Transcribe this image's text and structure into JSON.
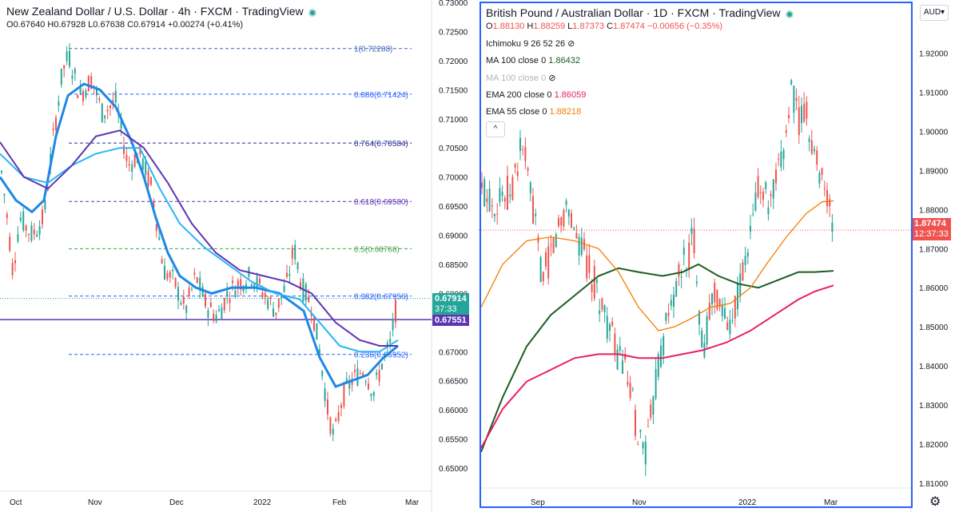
{
  "left_chart": {
    "title": "New Zealand Dollar / U.S. Dollar · 4h · FXCM · TradingView",
    "ohlc": {
      "o_label": "O",
      "o": "0.67640",
      "h_label": "H",
      "h": "0.67928",
      "l_label": "L",
      "l": "0.67638",
      "c_label": "C",
      "c": "0.67914",
      "change": "+0.00274 (+0.41%)"
    },
    "price_axis": [
      "0.73000",
      "0.72500",
      "0.72000",
      "0.71500",
      "0.71000",
      "0.70500",
      "0.70000",
      "0.69500",
      "0.69000",
      "0.68500",
      "0.68000",
      "0.67500",
      "0.67000",
      "0.66500",
      "0.66000",
      "0.65500",
      "0.65000"
    ],
    "time_axis": [
      "Oct",
      "Nov",
      "Dec",
      "2022",
      "Feb",
      "Mar"
    ],
    "fib_levels": [
      {
        "label": "1(0.72208)",
        "price": 0.72208,
        "color": "#3d63b8"
      },
      {
        "label": "0.886(0.71424)",
        "price": 0.71424,
        "color": "#2962ff"
      },
      {
        "label": "0.764(0.70584)",
        "price": 0.70584,
        "color": "#2a2e9c"
      },
      {
        "label": "0.618(0.69580)",
        "price": 0.6958,
        "color": "#5e35b1"
      },
      {
        "label": "0.5(0.68768)",
        "price": 0.68768,
        "color": "#43a047"
      },
      {
        "label": "0.382(0.67956)",
        "price": 0.67956,
        "color": "#2962ff"
      },
      {
        "label": "0.236(0.66952)",
        "price": 0.66952,
        "color": "#2962ff"
      }
    ],
    "horizontal_line_price": 0.67551,
    "last_price_tag": {
      "price": "0.67914",
      "countdown": "37:33",
      "color": "#26a69a"
    },
    "line_tag": {
      "price": "0.67551",
      "color": "#5e35b1"
    }
  },
  "right_chart": {
    "title": "British Pound / Australian Dollar · 1D · FXCM · TradingView",
    "ohlc": {
      "o_label": "O",
      "o": "1.88130",
      "h_label": "H",
      "h": "1.88259",
      "l_label": "L",
      "l": "1.87373",
      "c_label": "C",
      "c": "1.87474",
      "change": "−0.00656 (−0.35%)"
    },
    "indicators": [
      {
        "name": "Ichimoku 9 26 52 26",
        "value": "",
        "color": "#787b86",
        "hidden": true
      },
      {
        "name": "MA 100 close 0",
        "value": "1.86432",
        "color": "#1b5e20",
        "hidden": false
      },
      {
        "name": "MA 100 close 0",
        "value": "",
        "color": "#b2b5be",
        "hidden": true
      },
      {
        "name": "EMA 200 close 0",
        "value": "1.86059",
        "color": "#e91e63",
        "hidden": false
      },
      {
        "name": "EMA 55 close 0",
        "value": "1.88218",
        "color": "#f57c00",
        "hidden": false
      }
    ],
    "currency_button": "AUD",
    "price_axis": [
      "1.93000",
      "1.92000",
      "1.91000",
      "1.90000",
      "1.89000",
      "1.88000",
      "1.87000",
      "1.86000",
      "1.85000",
      "1.84000",
      "1.83000",
      "1.82000",
      "1.81000"
    ],
    "time_axis": [
      "Sep",
      "Nov",
      "2022",
      "Mar"
    ],
    "last_price_tag": {
      "price": "1.87474",
      "countdown": "12:37:33",
      "color": "#ef5350"
    },
    "collapse_label": "^"
  },
  "colors": {
    "up": "#26a69a",
    "down": "#ef5350",
    "accent": "#2962ff"
  }
}
